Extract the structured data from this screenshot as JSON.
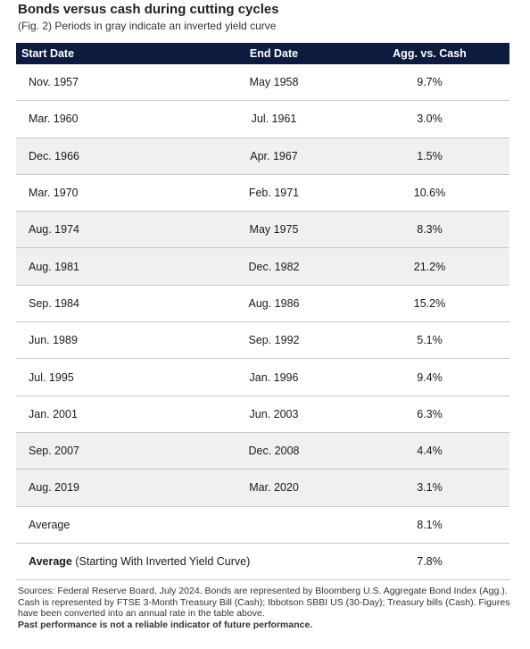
{
  "header": {
    "title": "Bonds versus cash during cutting cycles",
    "subtitle": "(Fig. 2) Periods in gray indicate an inverted yield curve"
  },
  "table": {
    "columns": [
      "Start Date",
      "End Date",
      "Agg. vs. Cash"
    ],
    "rows": [
      {
        "start": "Nov. 1957",
        "end": "May 1958",
        "value": "9.7%",
        "inverted": false
      },
      {
        "start": "Mar. 1960",
        "end": "Jul. 1961",
        "value": "3.0%",
        "inverted": false
      },
      {
        "start": "Dec. 1966",
        "end": "Apr. 1967",
        "value": "1.5%",
        "inverted": true
      },
      {
        "start": "Mar. 1970",
        "end": "Feb. 1971",
        "value": "10.6%",
        "inverted": false
      },
      {
        "start": "Aug. 1974",
        "end": "May 1975",
        "value": "8.3%",
        "inverted": true
      },
      {
        "start": "Aug. 1981",
        "end": "Dec. 1982",
        "value": "21.2%",
        "inverted": true
      },
      {
        "start": "Sep. 1984",
        "end": "Aug. 1986",
        "value": "15.2%",
        "inverted": false
      },
      {
        "start": "Jun. 1989",
        "end": "Sep. 1992",
        "value": "5.1%",
        "inverted": false
      },
      {
        "start": "Jul. 1995",
        "end": "Jan. 1996",
        "value": "9.4%",
        "inverted": false
      },
      {
        "start": "Jan. 2001",
        "end": "Jun. 2003",
        "value": "6.3%",
        "inverted": false
      },
      {
        "start": "Sep. 2007",
        "end": "Dec. 2008",
        "value": "4.4%",
        "inverted": true
      },
      {
        "start": "Aug. 2019",
        "end": "Mar. 2020",
        "value": "3.1%",
        "inverted": true
      }
    ],
    "average": {
      "label": "Average",
      "value": "8.1%"
    },
    "average_inverted": {
      "label": "Average",
      "note": "(Starting With Inverted Yield Curve)",
      "value": "7.8%"
    }
  },
  "footnote": {
    "text": "Sources: Federal Reserve Board, July 2024. Bonds are represented by Bloomberg U.S. Aggregate Bond Index (Agg.). Cash is represented by FTSE 3-Month Treasury Bill (Cash); Ibbotson SBBI US (30-Day); Treasury bills (Cash). Figures have been converted into an annual rate in the table above.",
    "bold": "Past performance is not a reliable indicator of future performance."
  }
}
